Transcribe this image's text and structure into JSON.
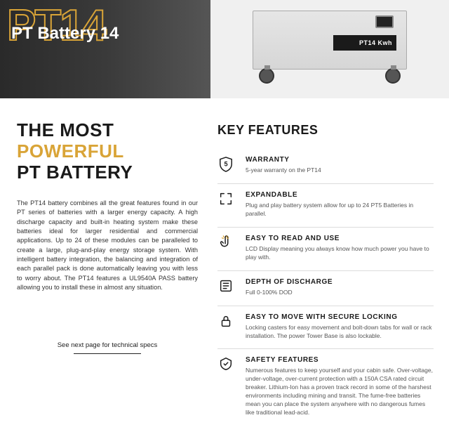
{
  "colors": {
    "accent": "#d9a437",
    "text_dark": "#1a1a1a",
    "text_body": "#333333",
    "text_muted": "#555555",
    "divider": "#dcdcdc",
    "hero_bg_start": "#2a2a2a",
    "hero_bg_end": "#555555",
    "product_bg": "#f0f0f0"
  },
  "typography": {
    "heading_fontsize": 26,
    "heading_weight": 900,
    "kf_title_fontsize": 18,
    "feature_title_fontsize": 10,
    "feature_desc_fontsize": 8.5,
    "body_fontsize": 9.2
  },
  "hero": {
    "bg_text": "PT14",
    "title": "PT Battery 14",
    "product_label": "PT14 Kwh"
  },
  "left": {
    "heading_line1": "THE MOST",
    "heading_line2": "POWERFUL",
    "heading_line3": "PT BATTERY",
    "body": "The PT14 battery combines all the great features found in our PT series of batteries with a larger energy capacity. A high discharge capacity and built-in heating system make these batteries ideal for larger residential and commercial applications. Up to 24 of these modules can be paralleled to create a large, plug-and-play energy storage system. With intelligent battery integration, the balancing and integration of each parallel pack is done automatically leaving you with less to worry about. The PT14 features a UL9540A PASS battery allowing you to install these in almost any situation.",
    "cta": "See next page for technical specs"
  },
  "right": {
    "title": "KEY FEATURES",
    "features": [
      {
        "icon": "shield-5",
        "title": "WARRANTY",
        "desc": "5-year warranty on the PT14"
      },
      {
        "icon": "expand",
        "title": "EXPANDABLE",
        "desc": "Plug and play battery system allow for up to 24 PT5 Batteries in parallel."
      },
      {
        "icon": "touch",
        "title": "EASY TO READ AND USE",
        "desc": "LCD Display meaning you always know how much power you have to play with."
      },
      {
        "icon": "depth",
        "title": "DEPTH OF DISCHARGE",
        "desc": "Full 0-100% DOD"
      },
      {
        "icon": "lock-move",
        "title": "EASY TO MOVE WITH SECURE LOCKING",
        "desc": "Locking casters for easy movement and bolt-down tabs for wall or rack installation. The power Tower Base is also lockable."
      },
      {
        "icon": "safety",
        "title": "SAFETY FEATURES",
        "desc": "Numerous features to keep yourself and your cabin safe. Over-voltage, under-voltage, over-current protection with a 150A CSA rated circuit breaker. Lithium-Ion has a proven track record in some of the harshest environments including mining and transit. The fume-free batteries mean you can place the system anywhere with no dangerous fumes like traditional lead-acid."
      }
    ]
  }
}
